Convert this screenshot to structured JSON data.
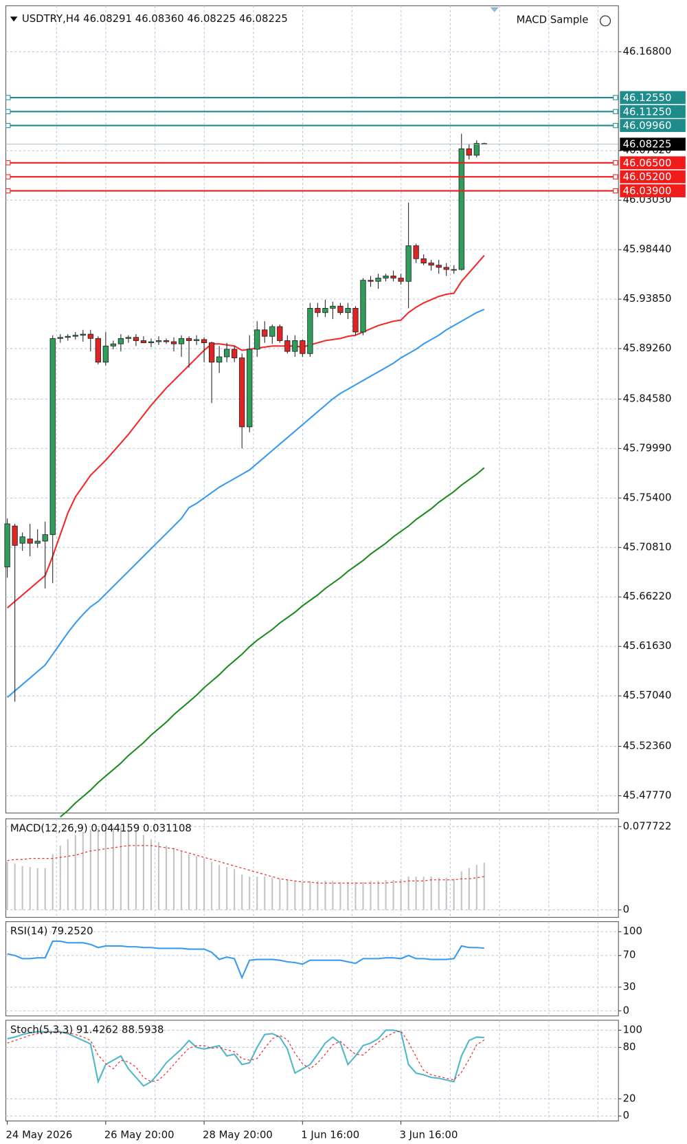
{
  "header": {
    "symbol_text": "USDTRY,H4  46.08291 46.08360 46.08225 46.08225",
    "expert": "MACD Sample"
  },
  "chart_data": [
    {
      "type": "candlestick",
      "categories": [
        "24 May 2026",
        null,
        null,
        null,
        null,
        null,
        null,
        null,
        null,
        null,
        null,
        null,
        null,
        "26 May 20:00",
        null,
        null,
        null,
        null,
        null,
        null,
        null,
        null,
        null,
        null,
        null,
        null,
        "28 May 20:00",
        null,
        null,
        null,
        null,
        null,
        null,
        null,
        null,
        null,
        null,
        null,
        null,
        "1 Jun 16:00",
        null,
        null,
        null,
        null,
        null,
        null,
        null,
        null,
        null,
        null,
        null,
        null,
        "3 Jun 16:00",
        null,
        null,
        null,
        null,
        null,
        null,
        null,
        null,
        null,
        null,
        null
      ],
      "open": [
        45.69,
        45.728,
        45.712,
        45.716,
        45.712,
        45.714,
        45.72,
        45.902,
        45.903,
        45.904,
        45.905,
        45.906,
        45.902,
        45.88,
        45.895,
        45.897,
        45.902,
        45.903,
        45.9,
        45.898,
        45.899,
        45.9,
        45.899,
        45.897,
        45.902,
        45.9,
        45.901,
        45.898,
        45.88,
        45.885,
        45.892,
        45.884,
        45.82,
        45.892,
        45.91,
        45.904,
        45.913,
        45.9,
        45.89,
        45.9,
        45.888,
        45.93,
        45.926,
        45.93,
        45.932,
        45.926,
        45.93,
        45.908,
        45.956,
        45.955,
        45.958,
        45.96,
        45.958,
        45.955,
        45.988,
        45.976,
        45.972,
        45.97,
        45.968,
        45.966,
        45.966,
        46.078,
        46.072,
        46.08291
      ],
      "high": [
        45.735,
        45.73,
        45.722,
        45.73,
        45.725,
        45.732,
        45.905,
        45.906,
        45.906,
        45.908,
        45.91,
        45.91,
        45.904,
        45.908,
        45.9,
        45.906,
        45.905,
        45.906,
        45.904,
        45.902,
        45.904,
        45.902,
        45.903,
        45.905,
        45.904,
        45.905,
        45.903,
        45.899,
        45.895,
        45.898,
        45.895,
        45.888,
        45.905,
        45.918,
        45.918,
        45.915,
        45.915,
        45.905,
        45.905,
        45.901,
        45.935,
        45.935,
        45.938,
        45.936,
        45.935,
        45.935,
        45.932,
        45.958,
        45.96,
        45.962,
        45.962,
        45.965,
        45.962,
        46.028,
        45.99,
        45.98,
        45.975,
        45.975,
        45.972,
        45.97,
        46.092,
        46.082,
        46.086,
        46.0836
      ],
      "low": [
        45.68,
        45.565,
        45.705,
        45.7,
        45.708,
        45.67,
        45.675,
        45.898,
        45.9,
        45.901,
        45.899,
        45.89,
        45.878,
        45.877,
        45.892,
        45.89,
        45.898,
        45.895,
        45.898,
        45.894,
        45.896,
        45.897,
        45.89,
        45.885,
        45.875,
        45.896,
        45.88,
        45.842,
        45.87,
        45.88,
        45.88,
        45.8,
        45.815,
        45.885,
        45.898,
        45.897,
        45.898,
        45.888,
        45.885,
        45.885,
        45.885,
        45.922,
        45.922,
        45.92,
        45.924,
        45.92,
        45.905,
        45.905,
        45.95,
        45.948,
        45.955,
        45.955,
        45.952,
        45.93,
        45.972,
        45.97,
        45.965,
        45.962,
        45.96,
        45.962,
        45.965,
        46.068,
        46.07,
        46.08225
      ],
      "close": [
        45.73,
        45.71,
        45.718,
        45.712,
        45.714,
        45.72,
        45.902,
        45.903,
        45.904,
        45.905,
        45.906,
        45.902,
        45.88,
        45.895,
        45.897,
        45.902,
        45.903,
        45.9,
        45.898,
        45.899,
        45.9,
        45.899,
        45.897,
        45.902,
        45.9,
        45.901,
        45.898,
        45.88,
        45.885,
        45.892,
        45.884,
        45.82,
        45.892,
        45.91,
        45.904,
        45.913,
        45.9,
        45.89,
        45.9,
        45.888,
        45.93,
        45.926,
        45.93,
        45.932,
        45.926,
        45.93,
        45.908,
        45.956,
        45.955,
        45.958,
        45.96,
        45.958,
        45.955,
        45.988,
        45.976,
        45.972,
        45.97,
        45.968,
        45.966,
        45.966,
        46.078,
        46.072,
        46.083,
        46.08225
      ],
      "up_color": "#2f9e5a",
      "down_color": "#e02424",
      "series": [
        {
          "color": "#f22a2a",
          "values": [
            45.652,
            45.658,
            45.664,
            45.67,
            45.676,
            45.682,
            45.7,
            45.72,
            45.74,
            45.755,
            45.765,
            45.775,
            45.782,
            45.789,
            45.797,
            45.805,
            45.813,
            45.822,
            45.831,
            45.84,
            45.848,
            45.856,
            45.863,
            45.87,
            45.877,
            45.884,
            45.891,
            45.897,
            45.897,
            45.896,
            45.895,
            45.891,
            45.892,
            45.893,
            45.894,
            45.895,
            45.895,
            45.895,
            45.895,
            45.894,
            45.896,
            45.898,
            45.9,
            45.901,
            45.902,
            45.904,
            45.905,
            45.908,
            45.911,
            45.914,
            45.916,
            45.918,
            45.919,
            45.926,
            45.931,
            45.935,
            45.938,
            45.941,
            45.943,
            45.944,
            45.955,
            45.963,
            45.971,
            45.979
          ]
        },
        {
          "color": "#3a9af0",
          "values": [
            45.569,
            45.575,
            45.581,
            45.587,
            45.593,
            45.599,
            45.609,
            45.619,
            45.629,
            45.638,
            45.646,
            45.653,
            45.658,
            45.665,
            45.672,
            45.679,
            45.686,
            45.693,
            45.7,
            45.707,
            45.714,
            45.721,
            45.728,
            45.735,
            45.745,
            45.749,
            45.754,
            45.759,
            45.764,
            45.768,
            45.772,
            45.776,
            45.78,
            45.786,
            45.792,
            45.798,
            45.804,
            45.81,
            45.816,
            45.822,
            45.828,
            45.834,
            45.84,
            45.846,
            45.851,
            45.855,
            45.859,
            45.863,
            45.867,
            45.871,
            45.875,
            45.879,
            45.884,
            45.888,
            45.892,
            45.897,
            45.901,
            45.905,
            45.91,
            45.914,
            45.918,
            45.922,
            45.926,
            45.929
          ]
        },
        {
          "color": "#1e8c1e",
          "values": [
            null,
            null,
            null,
            null,
            null,
            null,
            null,
            45.458,
            45.464,
            45.471,
            45.477,
            45.483,
            45.49,
            45.496,
            45.502,
            45.508,
            45.515,
            45.521,
            45.527,
            45.534,
            45.54,
            45.546,
            45.553,
            45.559,
            45.565,
            45.571,
            45.578,
            45.584,
            45.59,
            45.597,
            45.603,
            45.609,
            45.616,
            45.622,
            45.627,
            45.632,
            45.638,
            45.643,
            45.648,
            45.654,
            45.659,
            45.664,
            45.67,
            45.675,
            45.68,
            45.686,
            45.691,
            45.696,
            45.702,
            45.707,
            45.712,
            45.718,
            45.723,
            45.728,
            45.734,
            45.739,
            45.744,
            45.75,
            45.755,
            45.76,
            45.766,
            45.771,
            45.776,
            45.782
          ]
        }
      ],
      "ylim": [
        45.4617,
        46.2107
      ],
      "yticks": [
        {
          "value": 46.168,
          "label": "46.16800"
        },
        {
          "value": 46.0762,
          "label": "46.07620"
        },
        {
          "value": 46.0303,
          "label": "46.03030"
        },
        {
          "value": 45.9844,
          "label": "45.98440"
        },
        {
          "value": 45.9385,
          "label": "45.93850"
        },
        {
          "value": 45.8926,
          "label": "45.89260"
        },
        {
          "value": 45.8458,
          "label": "45.84580"
        },
        {
          "value": 45.7999,
          "label": "45.79990"
        },
        {
          "value": 45.754,
          "label": "45.75400"
        },
        {
          "value": 45.7081,
          "label": "45.70810"
        },
        {
          "value": 45.6622,
          "label": "45.66220"
        },
        {
          "value": 45.6163,
          "label": "45.61630"
        },
        {
          "value": 45.5704,
          "label": "45.57040"
        },
        {
          "value": 45.5236,
          "label": "45.52360"
        },
        {
          "value": 45.4777,
          "label": "45.47770"
        }
      ],
      "grid": true,
      "hlines": [
        {
          "value": 46.1255,
          "label": "46.12550",
          "color": "#1f8c8c"
        },
        {
          "value": 46.1125,
          "label": "46.11250",
          "color": "#1f8c8c"
        },
        {
          "value": 46.0996,
          "label": "46.09960",
          "color": "#1f8c8c"
        },
        {
          "value": 46.065,
          "label": "46.06500",
          "color": "#f01c1c"
        },
        {
          "value": 46.052,
          "label": "46.05200",
          "color": "#f01c1c"
        },
        {
          "value": 46.039,
          "label": "46.03900",
          "color": "#f01c1c"
        }
      ],
      "last_price": {
        "value": 46.08225,
        "label": "46.08225",
        "color": "#000000"
      }
    },
    {
      "type": "bar",
      "title": "MACD(12,26,9) 0.044159 0.031108",
      "values": [
        0.045,
        0.043,
        0.041,
        0.04,
        0.039,
        0.039,
        0.052,
        0.06,
        0.066,
        0.07,
        0.073,
        0.075,
        0.076,
        0.077,
        0.077,
        0.077,
        0.076,
        0.074,
        0.07,
        0.066,
        0.063,
        0.06,
        0.058,
        0.055,
        0.052,
        0.05,
        0.048,
        0.045,
        0.042,
        0.04,
        0.038,
        0.033,
        0.031,
        0.031,
        0.031,
        0.03,
        0.029,
        0.028,
        0.027,
        0.026,
        0.027,
        0.027,
        0.027,
        0.027,
        0.026,
        0.026,
        0.026,
        0.026,
        0.027,
        0.027,
        0.028,
        0.028,
        0.029,
        0.031,
        0.031,
        0.031,
        0.031,
        0.03,
        0.03,
        0.029,
        0.036,
        0.039,
        0.042,
        0.044159
      ],
      "color": "#c4c4c4",
      "series": [
        {
          "color": "#f03030",
          "dashed": true,
          "values": [
            0.046,
            0.047,
            0.047,
            0.048,
            0.048,
            0.048,
            0.048,
            0.049,
            0.05,
            0.051,
            0.053,
            0.055,
            0.056,
            0.057,
            0.058,
            0.059,
            0.06,
            0.06,
            0.06,
            0.06,
            0.059,
            0.058,
            0.057,
            0.055,
            0.053,
            0.051,
            0.049,
            0.047,
            0.045,
            0.043,
            0.041,
            0.039,
            0.037,
            0.035,
            0.033,
            0.031,
            0.029,
            0.028,
            0.027,
            0.026,
            0.026,
            0.025,
            0.025,
            0.025,
            0.025,
            0.025,
            0.025,
            0.025,
            0.025,
            0.025,
            0.025,
            0.026,
            0.026,
            0.027,
            0.027,
            0.027,
            0.028,
            0.028,
            0.028,
            0.028,
            0.029,
            0.029,
            0.03,
            0.031108
          ]
        }
      ],
      "ylim": [
        -0.007,
        0.085
      ],
      "yticks": [
        0.077722,
        0
      ],
      "grid": true
    },
    {
      "type": "line",
      "title": "RSI(14) 79.2520",
      "series": [
        {
          "color": "#3a9af0",
          "values": [
            72,
            70,
            66,
            66,
            67,
            67,
            88,
            88,
            86,
            86,
            86,
            84,
            80,
            82,
            82,
            82,
            81,
            81,
            80,
            80,
            79,
            79,
            79,
            79,
            78,
            78,
            78,
            74,
            65,
            68,
            66,
            42,
            64,
            65,
            65,
            65,
            64,
            62,
            61,
            59,
            64,
            64,
            64,
            64,
            64,
            62,
            60,
            66,
            66,
            66,
            67,
            67,
            66,
            70,
            66,
            66,
            65,
            65,
            65,
            66,
            82,
            80,
            80,
            79.252
          ]
        }
      ],
      "ylim": [
        -6.4,
        112.7
      ],
      "yticks": [
        100,
        70,
        30,
        0
      ],
      "grid": true
    },
    {
      "type": "line",
      "title": "Stoch(5,3,3) 91.4262 88.5938",
      "series": [
        {
          "color": "#4fb8c8",
          "values": [
            90,
            92,
            95,
            97,
            98,
            98,
            98,
            98,
            96,
            92,
            88,
            84,
            40,
            60,
            65,
            70,
            55,
            45,
            35,
            40,
            50,
            62,
            70,
            78,
            88,
            80,
            78,
            80,
            82,
            70,
            72,
            60,
            62,
            80,
            95,
            96,
            92,
            78,
            50,
            55,
            60,
            72,
            85,
            92,
            85,
            60,
            70,
            82,
            85,
            90,
            100,
            100,
            98,
            60,
            50,
            48,
            45,
            44,
            42,
            40,
            70,
            88,
            92,
            91.4262
          ]
        },
        {
          "color": "#f03030",
          "dashed": true,
          "values": [
            85,
            88,
            91,
            94,
            96,
            97,
            98,
            98,
            97,
            95,
            92,
            88,
            71,
            61,
            55,
            65,
            63,
            57,
            45,
            40,
            42,
            50,
            60,
            70,
            79,
            82,
            82,
            79,
            80,
            77,
            75,
            67,
            65,
            67,
            79,
            90,
            94,
            89,
            73,
            61,
            55,
            62,
            72,
            83,
            87,
            79,
            72,
            71,
            79,
            86,
            92,
            97,
            99,
            86,
            69,
            53,
            48,
            46,
            44,
            42,
            51,
            66,
            83,
            88.5938
          ]
        }
      ],
      "ylim": [
        -5.8,
        111.6
      ],
      "yticks": [
        100,
        80,
        20,
        0
      ],
      "grid": true
    }
  ]
}
